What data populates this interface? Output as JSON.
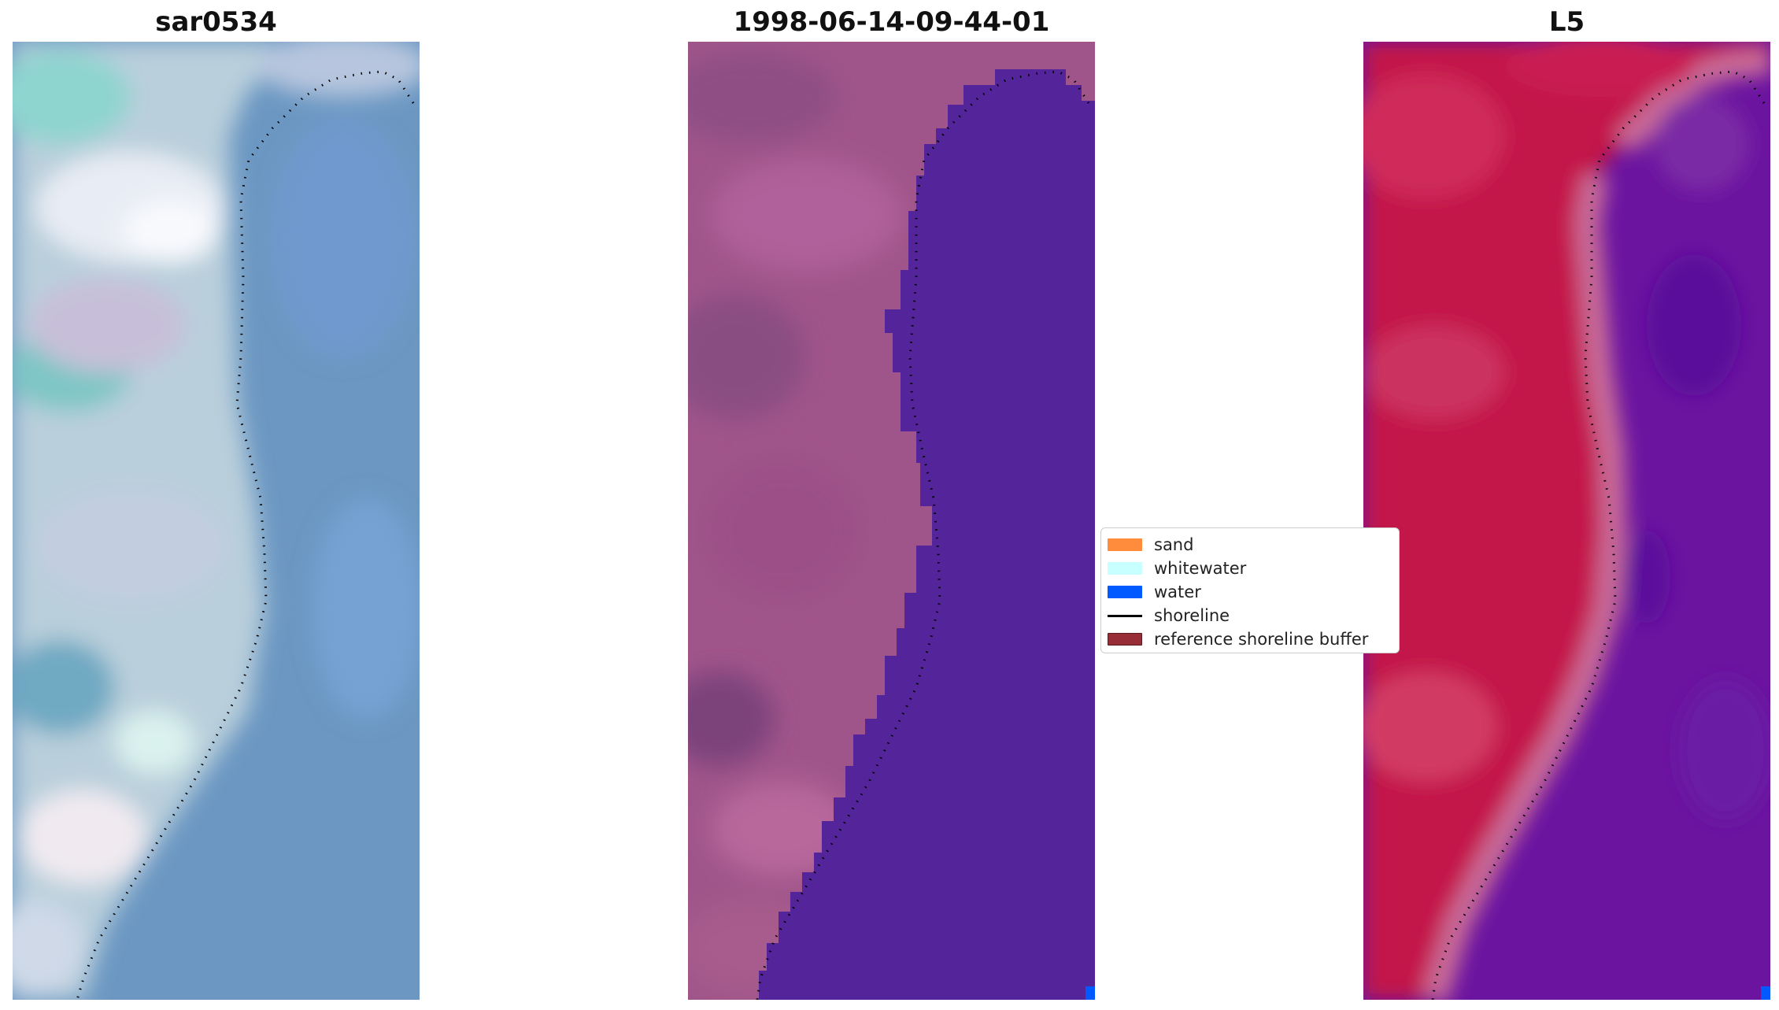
{
  "panels": [
    {
      "title": "sar0534"
    },
    {
      "title": "1998-06-14-09-44-01"
    },
    {
      "title": "L5"
    }
  ],
  "legend": {
    "items": [
      {
        "label": "sand",
        "kind": "patch",
        "color": "#ff8c3c"
      },
      {
        "label": "whitewater",
        "kind": "patch",
        "color": "#c8ffff"
      },
      {
        "label": "water",
        "kind": "patch",
        "color": "#005aff"
      },
      {
        "label": "shoreline",
        "kind": "line",
        "color": "#000000"
      },
      {
        "label": "reference shoreline buffer",
        "kind": "patch",
        "color": "#962d37"
      }
    ]
  },
  "colors": {
    "rgb_land": "#b8c8d8",
    "rgb_water": "#5f8ebf",
    "classified_land": "#a65a8c",
    "classified_water": "#53269a",
    "ndwi_land": "#c0184a",
    "ndwi_water": "#6a14a0",
    "shoreline": "#000000"
  }
}
